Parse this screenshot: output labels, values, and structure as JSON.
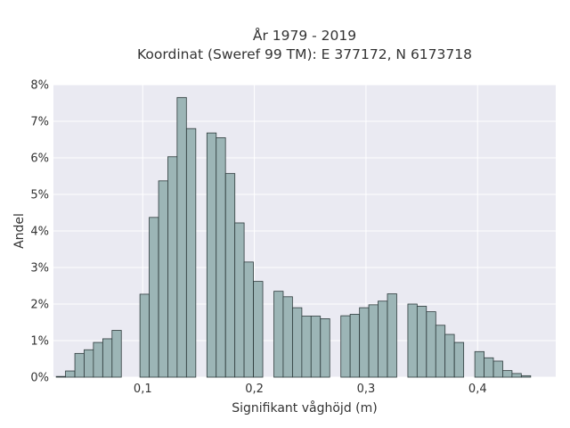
{
  "chart_data": {
    "type": "bar",
    "title": "År 1979 - 2019",
    "subtitle": "Koordinat (Sweref 99 TM): E 377172, N 6173718",
    "xlabel": "Signifikant våghöjd (m)",
    "ylabel": "Andel",
    "xlim": [
      0.02,
      0.47
    ],
    "ylim": [
      0,
      8
    ],
    "grid": true,
    "x_ticks": [
      {
        "value": 0.1,
        "label": "0,1"
      },
      {
        "value": 0.2,
        "label": "0,2"
      },
      {
        "value": 0.3,
        "label": "0,3"
      },
      {
        "value": 0.4,
        "label": "0,4"
      }
    ],
    "y_ticks": [
      {
        "value": 0,
        "label": "0%"
      },
      {
        "value": 1,
        "label": "1%"
      },
      {
        "value": 2,
        "label": "2%"
      },
      {
        "value": 3,
        "label": "3%"
      },
      {
        "value": 4,
        "label": "4%"
      },
      {
        "value": 5,
        "label": "5%"
      },
      {
        "value": 6,
        "label": "6%"
      },
      {
        "value": 7,
        "label": "7%"
      },
      {
        "value": 8,
        "label": "8%"
      }
    ],
    "bin_width": 0.00833,
    "bins_start": [
      0.0225,
      0.0308,
      0.0392,
      0.0475,
      0.0558,
      0.0642,
      0.0725,
      0.0808,
      0.0975,
      0.1058,
      0.1142,
      0.1225,
      0.1308,
      0.1392,
      0.1575,
      0.1658,
      0.1742,
      0.1825,
      0.1908,
      0.1992,
      0.2175,
      0.2258,
      0.2342,
      0.2425,
      0.2508,
      0.2592,
      0.2775,
      0.2858,
      0.2942,
      0.3025,
      0.3108,
      0.3192,
      0.3375,
      0.3458,
      0.3542,
      0.3625,
      0.3708,
      0.3792,
      0.3975,
      0.4058,
      0.4142,
      0.4225,
      0.4308,
      0.4392
    ],
    "values": [
      0.02,
      0.17,
      0.65,
      0.75,
      0.95,
      1.05,
      1.28,
      0.0,
      2.27,
      4.37,
      5.37,
      6.03,
      7.65,
      6.8,
      6.68,
      6.55,
      5.57,
      4.22,
      3.15,
      2.62,
      2.35,
      2.2,
      1.9,
      1.67,
      1.67,
      1.6,
      1.68,
      1.72,
      1.9,
      1.98,
      2.08,
      2.28,
      2.0,
      1.94,
      1.79,
      1.42,
      1.17,
      0.95,
      0.7,
      0.53,
      0.44,
      0.18,
      0.1,
      0.04
    ],
    "bar_color": "#9cb5b6",
    "bar_edge_color": "#2e3b3c",
    "plot_background": "#eaeaf2",
    "grid_color": "#ffffff"
  }
}
